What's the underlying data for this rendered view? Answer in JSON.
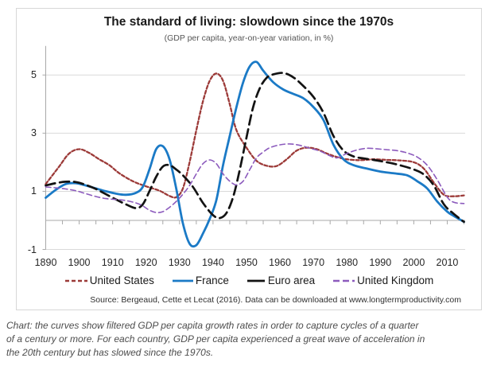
{
  "figure": {
    "title": "The standard of living: slowdown since the 1970s",
    "subtitle": "(GDP per capita, year-on-year variation, in %)",
    "source": "Source: Bergeaud, Cette et Lecat (2016). Data can be downloaded at www.longtermproductivity.com"
  },
  "caption": {
    "lines": [
      "Chart: the curves show filtered GDP per capita growth rates in order to capture cycles of a quarter",
      "of a century or more. For each country, GDP per capita experienced a great wave of acceleration in",
      "the 20th century but has slowed since the 1970s."
    ]
  },
  "chart_data": {
    "type": "line",
    "title": "The standard of living: slowdown since the 1970s",
    "subtitle": "(GDP per capita, year-on-year variation, in %)",
    "x_axis": {
      "range": [
        1890,
        2015
      ],
      "tick_labels": [
        "1890",
        "1900",
        "1910",
        "1920",
        "1930",
        "1940",
        "1950",
        "1960",
        "1970",
        "1980",
        "1990",
        "2000",
        "2010"
      ],
      "minor_tick_step": 5
    },
    "y_axis": {
      "range": [
        -1,
        6
      ],
      "tick_values": [
        5,
        3,
        1,
        -1
      ],
      "tick_labels": [
        "5",
        "3",
        "1",
        "-1"
      ]
    },
    "grid_color": "#d9d9d9",
    "axis_color": "#a8a8a8",
    "legend_position": "bottom",
    "series": [
      {
        "name": "United States",
        "color": "#9c3a38",
        "dash": "4,2.6",
        "width": 2.3,
        "legend_dash": "5,3",
        "points": [
          [
            1890,
            1.25
          ],
          [
            1894,
            1.85
          ],
          [
            1897,
            2.3
          ],
          [
            1900,
            2.45
          ],
          [
            1903,
            2.32
          ],
          [
            1906,
            2.1
          ],
          [
            1909,
            1.9
          ],
          [
            1912,
            1.62
          ],
          [
            1916,
            1.35
          ],
          [
            1920,
            1.17
          ],
          [
            1924,
            1.02
          ],
          [
            1927,
            0.84
          ],
          [
            1929,
            0.8
          ],
          [
            1931,
            1.1
          ],
          [
            1933,
            2.0
          ],
          [
            1935,
            3.1
          ],
          [
            1937,
            4.1
          ],
          [
            1939,
            4.8
          ],
          [
            1941,
            5.05
          ],
          [
            1943,
            4.8
          ],
          [
            1945,
            4.0
          ],
          [
            1947,
            3.1
          ],
          [
            1950,
            2.5
          ],
          [
            1953,
            2.05
          ],
          [
            1956,
            1.88
          ],
          [
            1959,
            1.87
          ],
          [
            1962,
            2.1
          ],
          [
            1965,
            2.4
          ],
          [
            1968,
            2.5
          ],
          [
            1971,
            2.45
          ],
          [
            1974,
            2.3
          ],
          [
            1977,
            2.18
          ],
          [
            1980,
            2.1
          ],
          [
            1984,
            2.07
          ],
          [
            1988,
            2.1
          ],
          [
            1992,
            2.08
          ],
          [
            1996,
            2.06
          ],
          [
            2000,
            2.0
          ],
          [
            2003,
            1.78
          ],
          [
            2006,
            1.3
          ],
          [
            2009,
            0.88
          ],
          [
            2012,
            0.83
          ],
          [
            2015,
            0.86
          ]
        ]
      },
      {
        "name": "France",
        "color": "#1b7ac6",
        "dash": "",
        "width": 2.8,
        "legend_dash": "",
        "points": [
          [
            1890,
            0.78
          ],
          [
            1893,
            1.05
          ],
          [
            1896,
            1.25
          ],
          [
            1899,
            1.28
          ],
          [
            1902,
            1.2
          ],
          [
            1905,
            1.1
          ],
          [
            1908,
            1.0
          ],
          [
            1911,
            0.92
          ],
          [
            1914,
            0.88
          ],
          [
            1917,
            0.95
          ],
          [
            1919,
            1.15
          ],
          [
            1921,
            1.75
          ],
          [
            1923,
            2.45
          ],
          [
            1925,
            2.55
          ],
          [
            1927,
            2.1
          ],
          [
            1929,
            1.1
          ],
          [
            1931,
            -0.1
          ],
          [
            1933,
            -0.8
          ],
          [
            1935,
            -0.85
          ],
          [
            1937,
            -0.45
          ],
          [
            1939,
            0.05
          ],
          [
            1941,
            0.7
          ],
          [
            1943,
            1.9
          ],
          [
            1945,
            2.9
          ],
          [
            1947,
            3.9
          ],
          [
            1949,
            4.75
          ],
          [
            1951,
            5.3
          ],
          [
            1953,
            5.45
          ],
          [
            1955,
            5.15
          ],
          [
            1958,
            4.75
          ],
          [
            1961,
            4.5
          ],
          [
            1964,
            4.35
          ],
          [
            1967,
            4.2
          ],
          [
            1970,
            3.9
          ],
          [
            1973,
            3.45
          ],
          [
            1976,
            2.6
          ],
          [
            1979,
            2.1
          ],
          [
            1982,
            1.9
          ],
          [
            1986,
            1.78
          ],
          [
            1990,
            1.68
          ],
          [
            1994,
            1.62
          ],
          [
            1998,
            1.55
          ],
          [
            2001,
            1.35
          ],
          [
            2004,
            1.1
          ],
          [
            2007,
            0.65
          ],
          [
            2010,
            0.3
          ],
          [
            2012,
            0.15
          ],
          [
            2015,
            -0.05
          ]
        ]
      },
      {
        "name": "Euro area",
        "color": "#131313",
        "dash": "12,6",
        "width": 2.7,
        "legend_dash": "22",
        "points": [
          [
            1890,
            1.2
          ],
          [
            1893,
            1.28
          ],
          [
            1896,
            1.33
          ],
          [
            1899,
            1.32
          ],
          [
            1902,
            1.22
          ],
          [
            1905,
            1.08
          ],
          [
            1908,
            0.9
          ],
          [
            1911,
            0.72
          ],
          [
            1914,
            0.55
          ],
          [
            1917,
            0.42
          ],
          [
            1919,
            0.55
          ],
          [
            1921,
            1.0
          ],
          [
            1923,
            1.5
          ],
          [
            1925,
            1.85
          ],
          [
            1927,
            1.9
          ],
          [
            1929,
            1.75
          ],
          [
            1931,
            1.55
          ],
          [
            1934,
            1.15
          ],
          [
            1937,
            0.6
          ],
          [
            1940,
            0.18
          ],
          [
            1942,
            0.08
          ],
          [
            1944,
            0.25
          ],
          [
            1946,
            0.8
          ],
          [
            1948,
            1.75
          ],
          [
            1950,
            2.85
          ],
          [
            1952,
            3.9
          ],
          [
            1954,
            4.55
          ],
          [
            1956,
            4.9
          ],
          [
            1958,
            5.02
          ],
          [
            1961,
            5.07
          ],
          [
            1964,
            4.92
          ],
          [
            1967,
            4.62
          ],
          [
            1970,
            4.25
          ],
          [
            1973,
            3.7
          ],
          [
            1976,
            2.9
          ],
          [
            1979,
            2.4
          ],
          [
            1982,
            2.2
          ],
          [
            1985,
            2.13
          ],
          [
            1988,
            2.08
          ],
          [
            1991,
            2.02
          ],
          [
            1994,
            1.95
          ],
          [
            1997,
            1.86
          ],
          [
            2000,
            1.75
          ],
          [
            2003,
            1.58
          ],
          [
            2006,
            1.2
          ],
          [
            2009,
            0.55
          ],
          [
            2012,
            0.22
          ],
          [
            2015,
            -0.05
          ]
        ]
      },
      {
        "name": "United Kingdom",
        "color": "#8c5bbd",
        "dash": "6.5,4",
        "width": 1.6,
        "legend_dash": "8,4",
        "points": [
          [
            1890,
            1.15
          ],
          [
            1893,
            1.12
          ],
          [
            1896,
            1.08
          ],
          [
            1899,
            1.02
          ],
          [
            1902,
            0.92
          ],
          [
            1905,
            0.82
          ],
          [
            1908,
            0.75
          ],
          [
            1911,
            0.72
          ],
          [
            1914,
            0.68
          ],
          [
            1917,
            0.6
          ],
          [
            1919,
            0.5
          ],
          [
            1921,
            0.35
          ],
          [
            1923,
            0.27
          ],
          [
            1925,
            0.3
          ],
          [
            1927,
            0.45
          ],
          [
            1929,
            0.65
          ],
          [
            1931,
            0.9
          ],
          [
            1933,
            1.2
          ],
          [
            1935,
            1.6
          ],
          [
            1937,
            1.95
          ],
          [
            1939,
            2.08
          ],
          [
            1941,
            1.95
          ],
          [
            1943,
            1.6
          ],
          [
            1945,
            1.35
          ],
          [
            1947,
            1.22
          ],
          [
            1949,
            1.35
          ],
          [
            1951,
            1.75
          ],
          [
            1953,
            2.15
          ],
          [
            1955,
            2.35
          ],
          [
            1957,
            2.5
          ],
          [
            1960,
            2.6
          ],
          [
            1963,
            2.63
          ],
          [
            1966,
            2.58
          ],
          [
            1969,
            2.48
          ],
          [
            1972,
            2.38
          ],
          [
            1975,
            2.22
          ],
          [
            1977,
            2.15
          ],
          [
            1980,
            2.3
          ],
          [
            1983,
            2.42
          ],
          [
            1986,
            2.48
          ],
          [
            1989,
            2.46
          ],
          [
            1992,
            2.43
          ],
          [
            1995,
            2.4
          ],
          [
            1998,
            2.32
          ],
          [
            2001,
            2.18
          ],
          [
            2004,
            1.9
          ],
          [
            2007,
            1.4
          ],
          [
            2010,
            0.8
          ],
          [
            2012,
            0.62
          ],
          [
            2015,
            0.58
          ]
        ]
      }
    ]
  }
}
